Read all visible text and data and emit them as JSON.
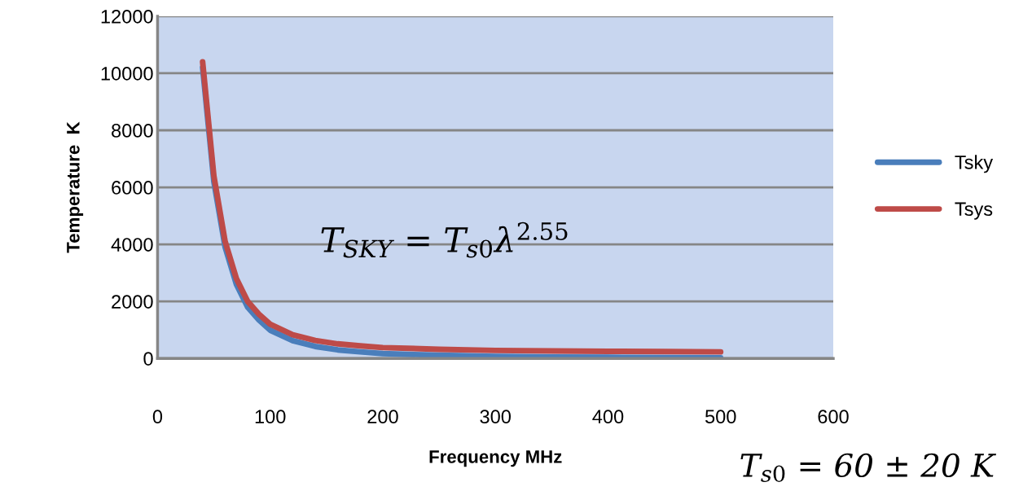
{
  "chart_data": {
    "type": "line",
    "xlabel": "Frequency MHz",
    "ylabel": "Temperature  K",
    "x": [
      40,
      50,
      60,
      70,
      80,
      90,
      100,
      120,
      140,
      160,
      180,
      200,
      250,
      300,
      350,
      400,
      450,
      500
    ],
    "series": [
      {
        "name": "Tsky",
        "color": "#4a7ebb",
        "values": [
          10200,
          6200,
          3900,
          2600,
          1800,
          1350,
          990,
          620,
          420,
          300,
          230,
          170,
          110,
          70,
          50,
          40,
          30,
          20
        ]
      },
      {
        "name": "Tsys",
        "color": "#be4b48",
        "values": [
          10400,
          6400,
          4100,
          2800,
          2000,
          1550,
          1200,
          830,
          630,
          510,
          440,
          380,
          320,
          280,
          260,
          250,
          240,
          230
        ]
      }
    ],
    "xlim": [
      0,
      600
    ],
    "xticks": [
      0,
      100,
      200,
      300,
      400,
      500,
      600
    ],
    "ylim": [
      0,
      12000
    ],
    "yticks": [
      0,
      2000,
      4000,
      6000,
      8000,
      10000,
      12000
    ],
    "grid": "y",
    "legend": "right",
    "marker": "none",
    "line_style": "solid",
    "annotations": [
      "T$_{SKY}$ = T$_{s0}$λ$^{2.55}$",
      "T$_{s0}$ = 60 ± 20 K"
    ]
  }
}
